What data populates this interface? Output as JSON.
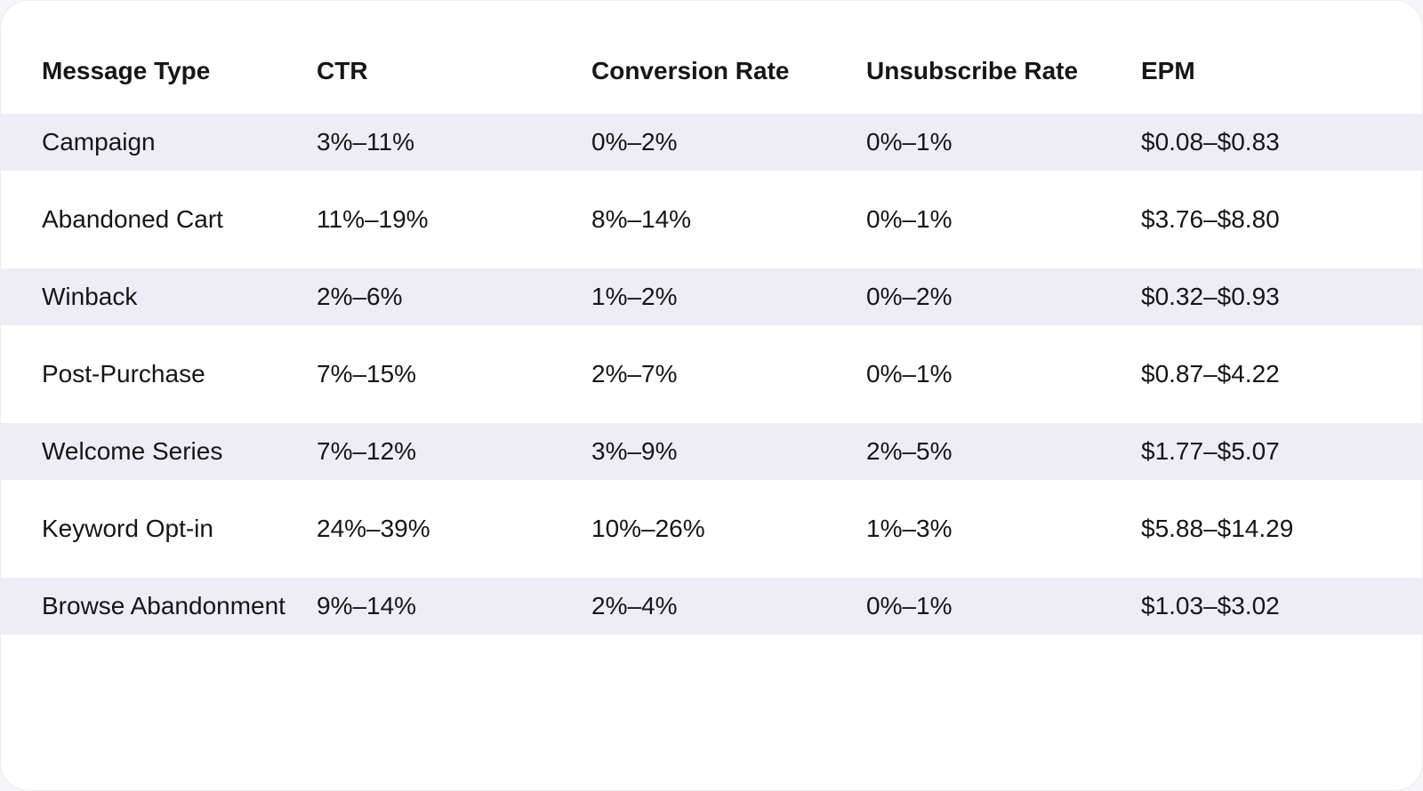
{
  "table": {
    "columns": [
      "Message Type",
      "CTR",
      "Conversion Rate",
      "Unsubscribe Rate",
      "EPM"
    ],
    "rows": [
      [
        "Campaign",
        "3%–11%",
        "0%–2%",
        "0%–1%",
        "$0.08–$0.83"
      ],
      [
        "Abandoned Cart",
        "11%–19%",
        "8%–14%",
        "0%–1%",
        "$3.76–$8.80"
      ],
      [
        "Winback",
        "2%–6%",
        "1%–2%",
        "0%–2%",
        "$0.32–$0.93"
      ],
      [
        "Post-Purchase",
        "7%–15%",
        "2%–7%",
        "0%–1%",
        "$0.87–$4.22"
      ],
      [
        "Welcome Series",
        "7%–12%",
        "3%–9%",
        "2%–5%",
        "$1.77–$5.07"
      ],
      [
        "Keyword Opt-in",
        "24%–39%",
        "10%–26%",
        "1%–3%",
        "$5.88–$14.29"
      ],
      [
        "Browse Abandonment",
        "9%–14%",
        "2%–4%",
        "0%–1%",
        "$1.03–$3.02"
      ]
    ]
  }
}
